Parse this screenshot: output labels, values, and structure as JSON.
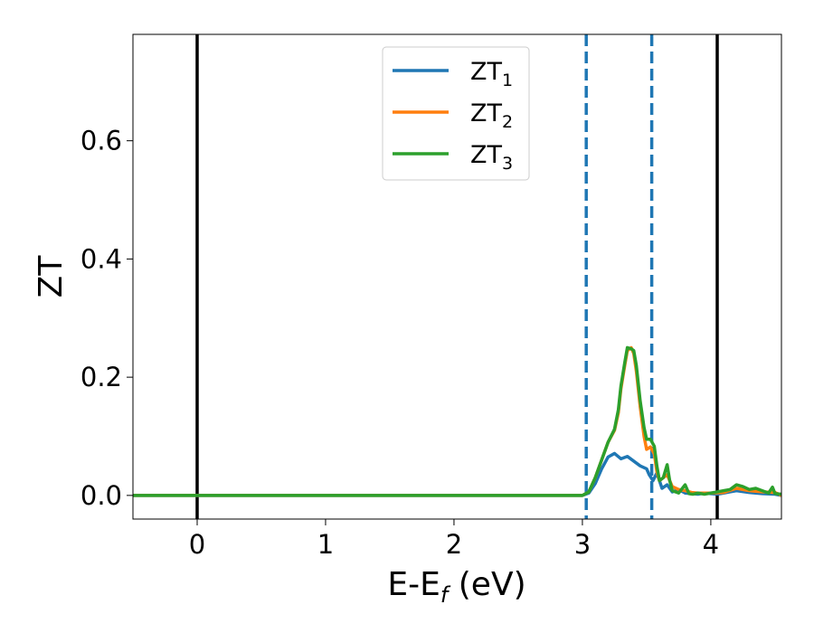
{
  "chart_data": {
    "type": "line",
    "xlabel": {
      "main": "E-E",
      "sub": "f",
      "rest": " (eV)"
    },
    "ylabel": "ZT",
    "xlim": [
      -0.5,
      4.55
    ],
    "ylim": [
      -0.04,
      0.78
    ],
    "x_ticks": [
      {
        "value": 0,
        "label": "0"
      },
      {
        "value": 1,
        "label": "1"
      },
      {
        "value": 2,
        "label": "2"
      },
      {
        "value": 3,
        "label": "3"
      },
      {
        "value": 4,
        "label": "4"
      }
    ],
    "y_ticks": [
      {
        "value": 0.0,
        "label": "0.0"
      },
      {
        "value": 0.2,
        "label": "0.2"
      },
      {
        "value": 0.4,
        "label": "0.4"
      },
      {
        "value": 0.6,
        "label": "0.6"
      }
    ],
    "grid": false,
    "legend_position": "top-center",
    "vlines": [
      {
        "x": 0.0,
        "style": "solid",
        "color": "#000000"
      },
      {
        "x": 4.05,
        "style": "solid",
        "color": "#000000"
      },
      {
        "x": 3.03,
        "style": "dashed",
        "color": "#1f77b4"
      },
      {
        "x": 3.54,
        "style": "dashed",
        "color": "#1f77b4"
      }
    ],
    "series": [
      {
        "name": "ZT",
        "sub": "1",
        "color": "#1f77b4",
        "x": [
          -0.5,
          3.0,
          3.05,
          3.1,
          3.15,
          3.2,
          3.25,
          3.3,
          3.35,
          3.4,
          3.45,
          3.5,
          3.52,
          3.55,
          3.58,
          3.62,
          3.66,
          3.7,
          3.75,
          3.8,
          3.85,
          3.9,
          3.95,
          4.0,
          4.05,
          4.1,
          4.15,
          4.2,
          4.3,
          4.4,
          4.5,
          4.55
        ],
        "y": [
          0.0,
          0.0,
          0.004,
          0.02,
          0.045,
          0.065,
          0.071,
          0.062,
          0.066,
          0.058,
          0.05,
          0.045,
          0.035,
          0.025,
          0.038,
          0.012,
          0.018,
          0.006,
          0.01,
          0.004,
          0.003,
          0.002,
          0.004,
          0.003,
          0.002,
          0.004,
          0.006,
          0.008,
          0.005,
          0.003,
          0.002,
          0.0
        ]
      },
      {
        "name": "ZT",
        "sub": "2",
        "color": "#ff7f0e",
        "x": [
          -0.5,
          3.0,
          3.05,
          3.1,
          3.15,
          3.2,
          3.25,
          3.28,
          3.3,
          3.33,
          3.35,
          3.38,
          3.4,
          3.42,
          3.45,
          3.48,
          3.5,
          3.53,
          3.56,
          3.58,
          3.6,
          3.63,
          3.66,
          3.7,
          3.75,
          3.8,
          3.85,
          3.9,
          4.0,
          4.1,
          4.2,
          4.3,
          4.4,
          4.5,
          4.55
        ],
        "y": [
          0.0,
          0.0,
          0.006,
          0.03,
          0.06,
          0.09,
          0.11,
          0.14,
          0.18,
          0.22,
          0.245,
          0.25,
          0.24,
          0.21,
          0.15,
          0.1,
          0.078,
          0.082,
          0.07,
          0.04,
          0.025,
          0.03,
          0.035,
          0.015,
          0.01,
          0.008,
          0.005,
          0.004,
          0.004,
          0.005,
          0.012,
          0.008,
          0.006,
          0.005,
          0.0
        ]
      },
      {
        "name": "ZT",
        "sub": "3",
        "color": "#2ca02c",
        "x": [
          -0.5,
          3.0,
          3.05,
          3.1,
          3.15,
          3.2,
          3.25,
          3.28,
          3.3,
          3.33,
          3.35,
          3.38,
          3.4,
          3.42,
          3.45,
          3.48,
          3.5,
          3.53,
          3.56,
          3.58,
          3.6,
          3.63,
          3.66,
          3.68,
          3.7,
          3.75,
          3.8,
          3.83,
          3.86,
          3.9,
          3.95,
          4.0,
          4.05,
          4.1,
          4.15,
          4.2,
          4.25,
          4.3,
          4.35,
          4.4,
          4.45,
          4.48,
          4.5,
          4.55
        ],
        "y": [
          0.0,
          0.0,
          0.006,
          0.03,
          0.06,
          0.09,
          0.112,
          0.145,
          0.185,
          0.225,
          0.25,
          0.248,
          0.245,
          0.22,
          0.16,
          0.115,
          0.095,
          0.095,
          0.083,
          0.05,
          0.025,
          0.03,
          0.052,
          0.025,
          0.008,
          0.004,
          0.018,
          0.003,
          0.002,
          0.004,
          0.002,
          0.004,
          0.006,
          0.008,
          0.01,
          0.018,
          0.015,
          0.01,
          0.012,
          0.008,
          0.004,
          0.014,
          0.003,
          0.002
        ]
      }
    ]
  }
}
